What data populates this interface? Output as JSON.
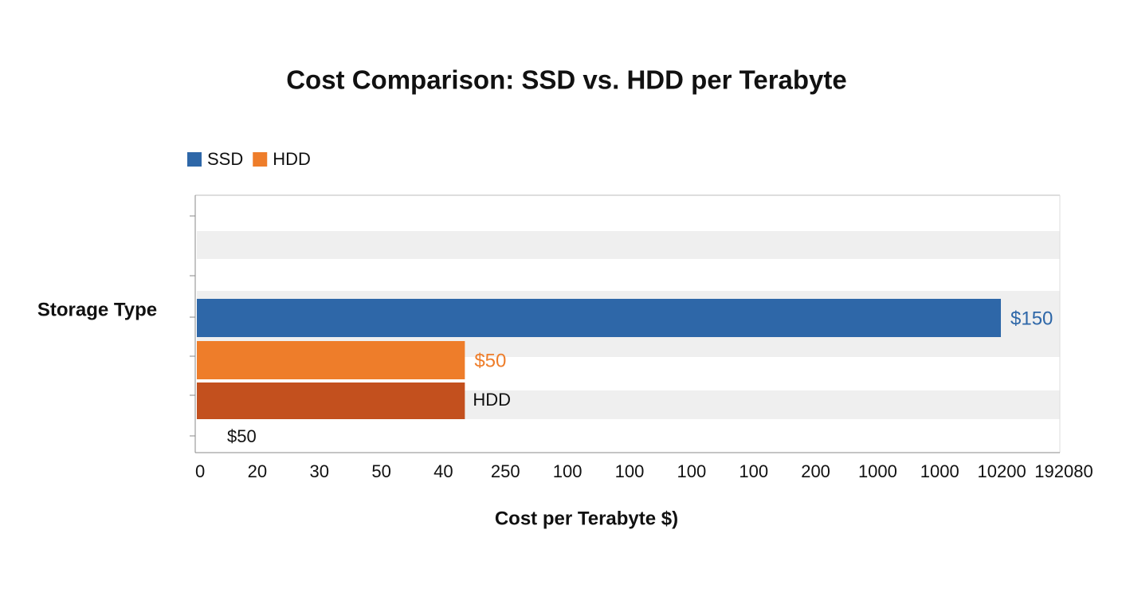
{
  "chart_data": {
    "type": "bar",
    "title": "Cost Comparison: SSD vs. HDD per Terabyte",
    "x_label": "Cost per Terabyte $)",
    "y_label": "Storage Type",
    "series": [
      {
        "name": "SSD",
        "color": "#2e67a8",
        "values": [
          150
        ],
        "value_labels": [
          "$150"
        ]
      },
      {
        "name": "HDD",
        "color": "#ee7d2a",
        "values": [
          50
        ],
        "value_labels": [
          "$50"
        ]
      }
    ],
    "extra_bar": {
      "label": "HDD",
      "color": "#c3501e",
      "value": 50,
      "value_label": "$50"
    },
    "xlim": [
      0,
      161
    ],
    "x_tick_labels": [
      "0",
      "20",
      "30",
      "50",
      "40",
      "250",
      "100",
      "100",
      "100",
      "100",
      "200",
      "1000",
      "1000",
      "10200",
      "192080"
    ],
    "legend": "top-left"
  }
}
